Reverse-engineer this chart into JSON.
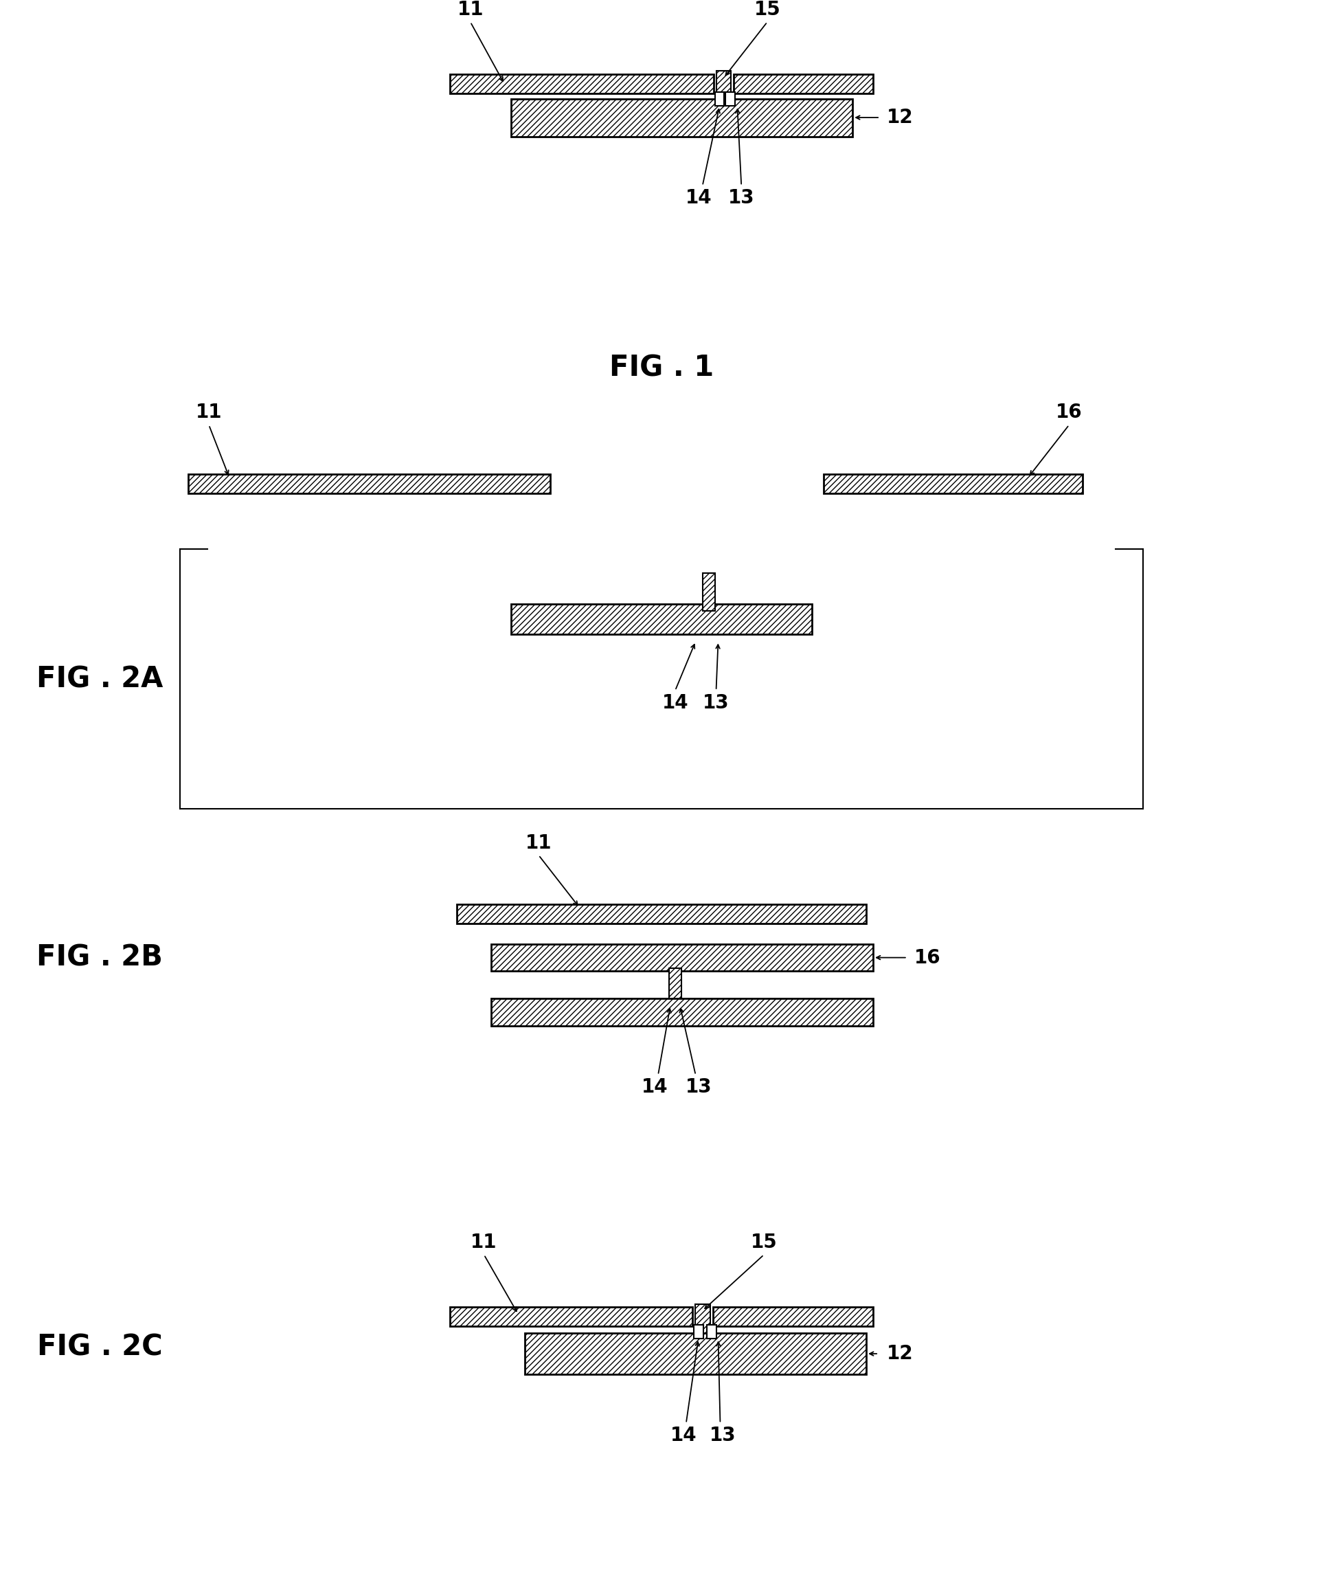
{
  "bg_color": "#ffffff",
  "line_color": "#000000",
  "fig_width": 19.26,
  "fig_height": 23.11,
  "labels": {
    "fig1": "FIG . 1",
    "fig2a": "FIG . 2A",
    "fig2b": "FIG . 2B",
    "fig2c": "FIG . 2C"
  },
  "font_size": 20,
  "label_font_size": 30
}
